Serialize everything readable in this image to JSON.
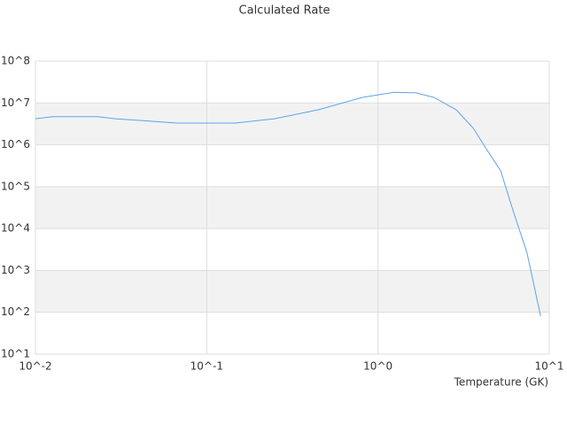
{
  "chart_data": {
    "type": "line",
    "title": "Calculated Rate",
    "x_label": "Temperature (GK)",
    "log_x": true,
    "log_y": true,
    "band_fill": "#f2f2f2",
    "grid_color": "#dddddd",
    "xlim": [
      0.01,
      10
    ],
    "xticks": [
      {
        "value": 0.01,
        "label": "10^-2"
      },
      {
        "value": 0.1,
        "label": "10^-1"
      },
      {
        "value": 1,
        "label": "10^0"
      },
      {
        "value": 10,
        "label": "10^1"
      }
    ],
    "ylim": [
      10,
      100000000
    ],
    "yticks": [
      {
        "value": 10,
        "label": "10^1"
      },
      {
        "value": 100,
        "label": "10^2"
      },
      {
        "value": 1000,
        "label": "10^3"
      },
      {
        "value": 10000,
        "label": "10^4"
      },
      {
        "value": 100000,
        "label": "10^5"
      },
      {
        "value": 1000000,
        "label": "10^6"
      },
      {
        "value": 10000000,
        "label": "10^7"
      },
      {
        "value": 100000000,
        "label": "10^8"
      }
    ],
    "x": [
      0.01,
      0.0127,
      0.023,
      0.0292,
      0.0417,
      0.0672,
      0.146,
      0.249,
      0.45,
      0.81,
      1.24,
      1.67,
      2.12,
      2.86,
      3.6,
      4.35,
      5.2,
      6.2,
      7.4,
      8.9
    ],
    "series": [
      {
        "color": "#5ea3e8",
        "values": [
          4200000,
          4700000,
          4700000,
          4200000,
          3800000,
          3300000,
          3300000,
          4200000,
          6900000,
          13600000,
          18000000,
          17400000,
          13600000,
          6900000,
          2500000,
          730000,
          240000,
          24000,
          2700,
          81
        ]
      }
    ]
  }
}
